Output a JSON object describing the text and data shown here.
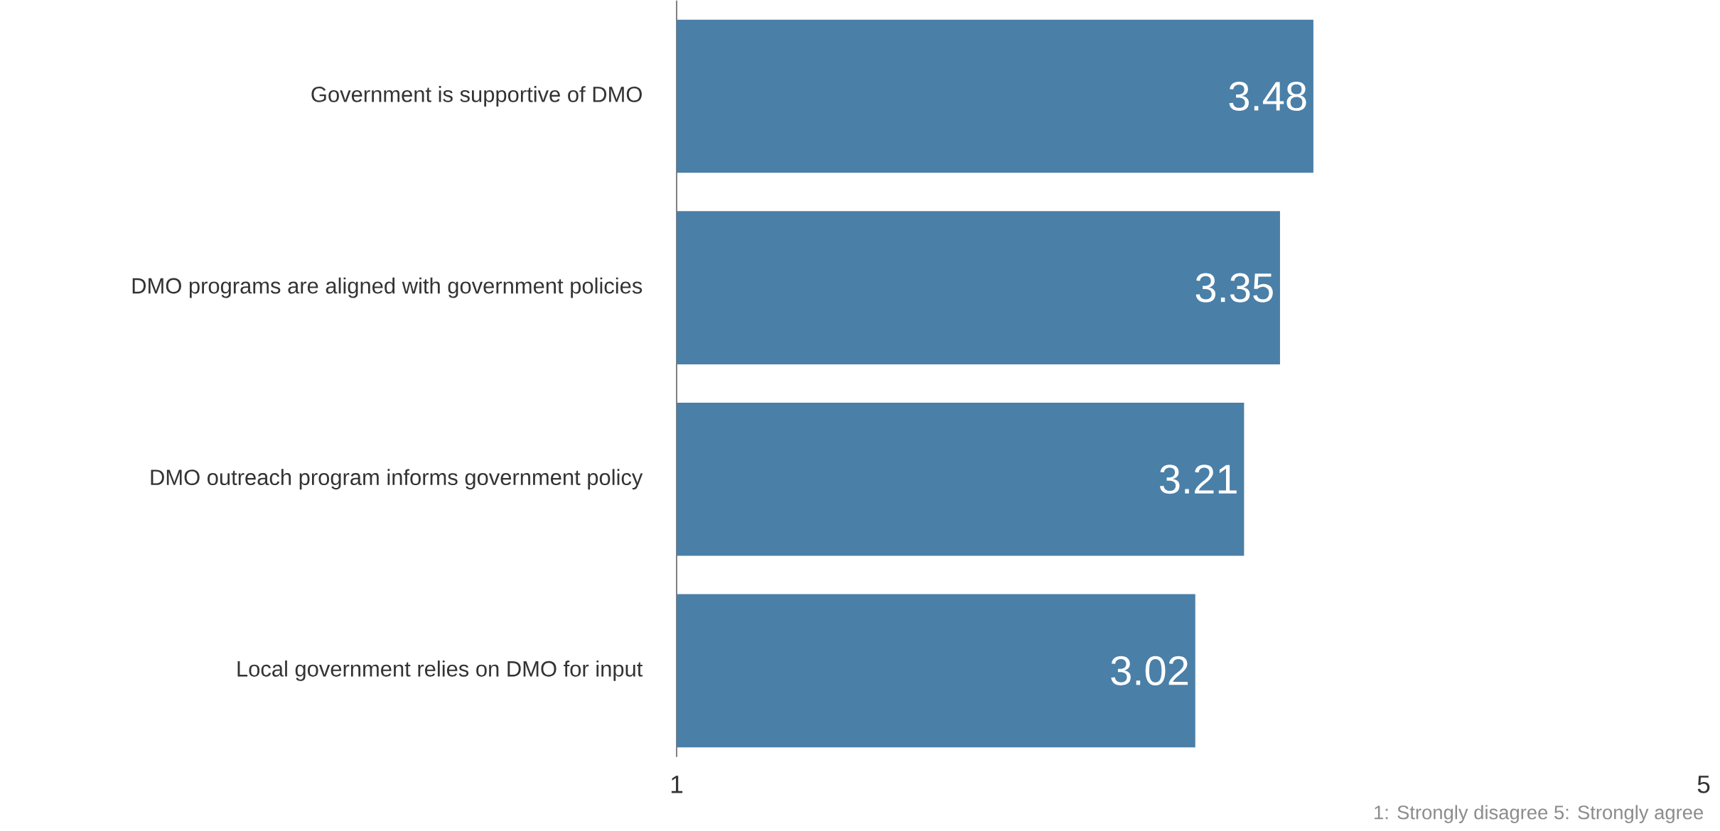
{
  "chart_data": {
    "type": "bar",
    "orientation": "horizontal",
    "categories": [
      "Government is supportive of DMO",
      "DMO programs are aligned with government policies",
      "DMO outreach program informs government policy",
      "Local government relies on DMO for input"
    ],
    "values": [
      3.48,
      3.35,
      3.21,
      3.02
    ],
    "value_labels": [
      "3.48",
      "3.35",
      "3.21",
      "3.02"
    ],
    "color": "#4a7fa7",
    "xlim": [
      1,
      5
    ],
    "xticks": [
      1,
      5
    ],
    "grid": false,
    "annotations": [
      "1: Strongly disagree  5: Strongly agree"
    ]
  }
}
